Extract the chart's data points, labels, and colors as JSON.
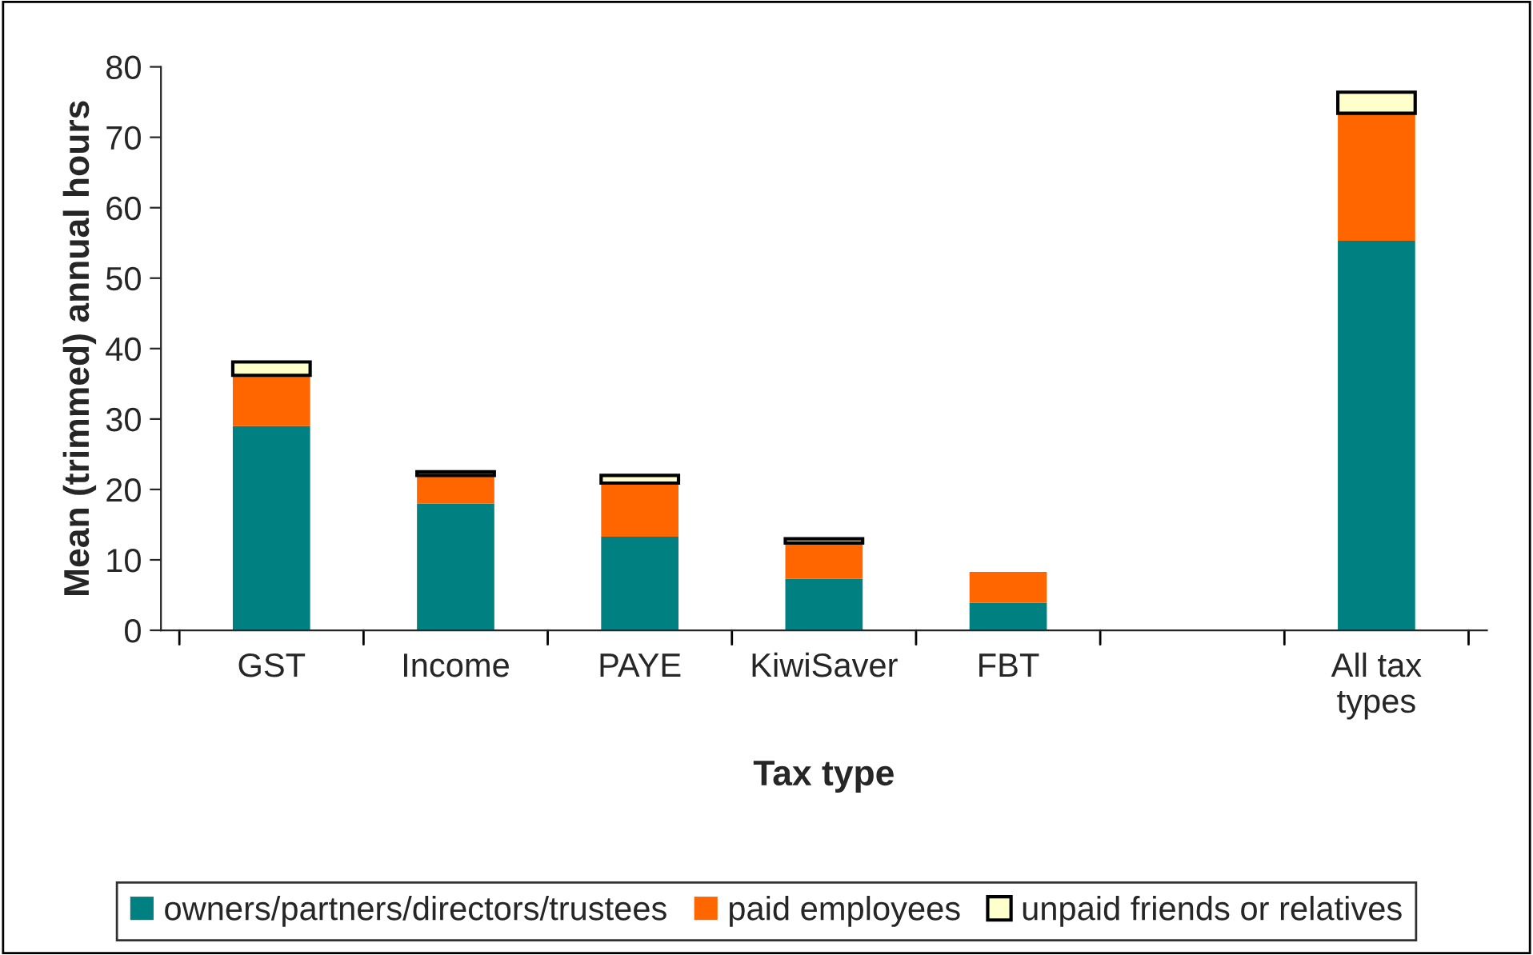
{
  "chart_data": {
    "type": "bar",
    "stacked": true,
    "xlabel": "Tax type",
    "ylabel": "Mean (trimmed) annual hours",
    "categories": [
      "GST",
      "Income",
      "PAYE",
      "KiwiSaver",
      "FBT",
      null,
      "All tax\ntypes"
    ],
    "series": [
      {
        "name": "owners/partners/directors/trustees",
        "color": "#008080",
        "values": [
          29,
          18,
          13.3,
          7.3,
          3.9,
          null,
          55.3
        ]
      },
      {
        "name": "paid employees",
        "color": "#ff6600",
        "values": [
          7.2,
          4,
          7.6,
          5.1,
          4.4,
          null,
          18.1
        ]
      },
      {
        "name": "unpaid friends or relatives",
        "color": "#ffffcc",
        "values": [
          1.9,
          0.5,
          1.1,
          0.6,
          null,
          null,
          3.0
        ]
      }
    ],
    "ylim": [
      0,
      80
    ],
    "yticks": [
      0,
      10,
      20,
      30,
      40,
      50,
      60,
      70,
      80
    ],
    "grid": false,
    "legend": "bottom"
  }
}
